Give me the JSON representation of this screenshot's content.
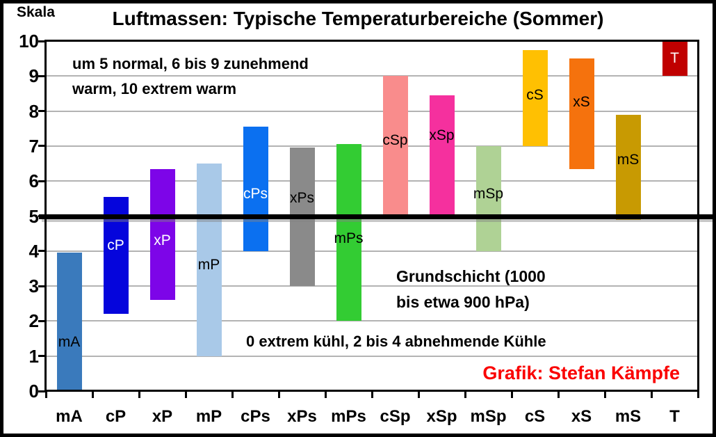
{
  "chart": {
    "title": "Luftmassen: Typische Temperaturbereiche (Sommer)",
    "y_axis_title": "Skala"
  },
  "annotations": {
    "warm_note_line1": "um 5 normal, 6 bis 9 zunehmend",
    "warm_note_line2": "warm, 10 extrem warm",
    "grundschicht_line1": "Grundschicht (1000",
    "grundschicht_line2": "bis etwa 900 hPa)",
    "cool_note": "0 extrem kühl, 2 bis 4 abnehmende Kühle",
    "credit": "Grafik: Stefan Kämpfe"
  },
  "colors": {
    "background": "#FFFFFF",
    "gridline": "#B3B3B3",
    "axis": "#000000",
    "baseline": "#000000",
    "credit_red": "#FA0000"
  },
  "chart_data": {
    "type": "bar",
    "subtype": "floating-range-bars",
    "title": "Luftmassen: Typische Temperaturbereiche (Sommer)",
    "y_axis_title": "Skala",
    "ylim": [
      0,
      10
    ],
    "yticks": [
      "0",
      "1",
      "2",
      "3",
      "4",
      "5",
      "6",
      "7",
      "8",
      "9",
      "10"
    ],
    "gridlines_at": [
      1,
      2,
      3,
      4,
      6,
      7,
      8,
      9
    ],
    "baseline_value": 5,
    "grid": true,
    "legend": "none",
    "categories": [
      "mA",
      "cP",
      "xP",
      "mP",
      "cPs",
      "xPs",
      "mPs",
      "cSp",
      "xSp",
      "mSp",
      "cS",
      "xS",
      "mS",
      "T"
    ],
    "bars": [
      {
        "label": "mA",
        "range_min": 0,
        "range_max": 3.95,
        "color": "#3A7ABC",
        "label_color": "#000000",
        "label_y": 1.4
      },
      {
        "label": "cP",
        "range_min": 2.2,
        "range_max": 5.55,
        "color": "#0505DC",
        "label_color": "#FFFFFF",
        "label_y": 4.15
      },
      {
        "label": "xP",
        "range_min": 2.6,
        "range_max": 6.35,
        "color": "#7D05E8",
        "label_color": "#FFFFFF",
        "label_y": 4.3
      },
      {
        "label": "mP",
        "range_min": 1.0,
        "range_max": 6.5,
        "color": "#A9C9E8",
        "label_color": "#000000",
        "label_y": 3.6
      },
      {
        "label": "cPs",
        "range_min": 4.0,
        "range_max": 7.55,
        "color": "#0B70F0",
        "label_color": "#FFFFFF",
        "label_y": 5.62
      },
      {
        "label": "xPs",
        "range_min": 3.0,
        "range_max": 6.95,
        "color": "#8A8A8A",
        "label_color": "#000000",
        "label_y": 5.5
      },
      {
        "label": "mPs",
        "range_min": 2.0,
        "range_max": 7.05,
        "color": "#33CC33",
        "label_color": "#000000",
        "label_y": 4.35
      },
      {
        "label": "cSp",
        "range_min": 5.0,
        "range_max": 9.0,
        "color": "#F98C8C",
        "label_color": "#000000",
        "label_y": 7.15
      },
      {
        "label": "xSp",
        "range_min": 5.0,
        "range_max": 8.45,
        "color": "#F5309E",
        "label_color": "#000000",
        "label_y": 7.3
      },
      {
        "label": "mSp",
        "range_min": 4.0,
        "range_max": 7.0,
        "color": "#AFD295",
        "label_color": "#000000",
        "label_y": 5.62
      },
      {
        "label": "cS",
        "range_min": 7.0,
        "range_max": 9.75,
        "color": "#FFC002",
        "label_color": "#000000",
        "label_y": 8.45
      },
      {
        "label": "xS",
        "range_min": 6.35,
        "range_max": 9.5,
        "color": "#F5720D",
        "label_color": "#000000",
        "label_y": 8.25
      },
      {
        "label": "mS",
        "range_min": 4.9,
        "range_max": 7.9,
        "color": "#C89A02",
        "label_color": "#000000",
        "label_y": 6.6
      },
      {
        "label": "T",
        "range_min": 9.0,
        "range_max": 10.0,
        "color": "#C00000",
        "label_color": "#FFFFFF",
        "label_y": 9.5
      }
    ]
  }
}
